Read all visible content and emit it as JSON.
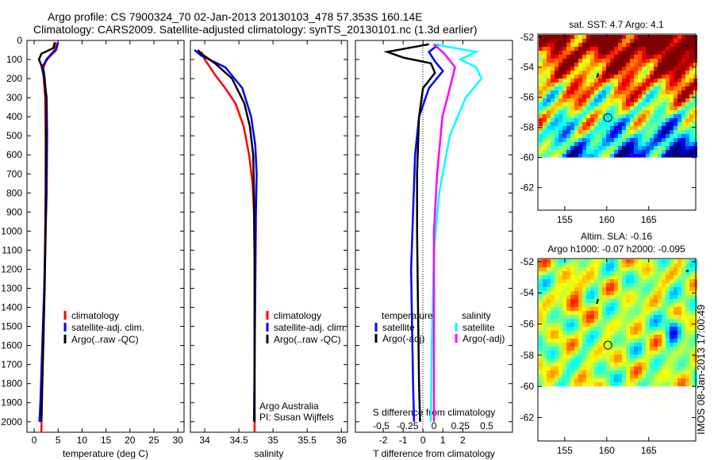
{
  "title": {
    "line1": "Argo profile: CS 7900324_70 02-Jan-2013 20130103_478 57.353S 160.14E",
    "line2": "Climatology: CARS2009. Satellite-adjusted climatology: synTS_20130101.nc (1.3d earlier)"
  },
  "side_stamp": "IMOS 08-Jan-2013 17:00:49",
  "colors": {
    "climatology": "#ff0000",
    "satellite": "#0000ff",
    "argo": "#000000",
    "sal_satellite": "#00ffff",
    "sal_argo": "#ff00ff"
  },
  "chart_data": [
    {
      "type": "line",
      "name": "temperature",
      "xlabel": "temperature (deg C)",
      "ylim": [
        2055,
        0
      ],
      "xlim": [
        -1.5,
        31.3
      ],
      "xticks": [
        0,
        5,
        10,
        15,
        20,
        25,
        30
      ],
      "yticks": [
        0,
        100,
        200,
        300,
        400,
        500,
        600,
        700,
        800,
        900,
        1000,
        1100,
        1200,
        1300,
        1400,
        1500,
        1600,
        1700,
        1800,
        1900,
        2000
      ],
      "legend": [
        "climatology",
        "satellite-adj. clim.",
        "Argo(..raw -QC)"
      ],
      "series": [
        {
          "name": "climatology",
          "color": "#ff0000",
          "points": [
            [
              4.5,
              10
            ],
            [
              4.3,
              50
            ],
            [
              2.5,
              100
            ],
            [
              1.9,
              150
            ],
            [
              2.0,
              200
            ],
            [
              2.3,
              300
            ],
            [
              2.4,
              500
            ],
            [
              2.4,
              800
            ],
            [
              2.3,
              1000
            ],
            [
              2.2,
              1200
            ],
            [
              2.0,
              1500
            ],
            [
              1.7,
              1800
            ],
            [
              1.5,
              2055
            ]
          ]
        },
        {
          "name": "satellite-adj. clim.",
          "color": "#0000ff",
          "points": [
            [
              5.0,
              10
            ],
            [
              4.6,
              50
            ],
            [
              3.0,
              90
            ],
            [
              1.6,
              140
            ],
            [
              2.1,
              200
            ],
            [
              2.6,
              300
            ],
            [
              2.7,
              500
            ],
            [
              2.6,
              800
            ],
            [
              2.4,
              1000
            ],
            [
              2.1,
              1300
            ],
            [
              1.7,
              1600
            ],
            [
              1.3,
              1900
            ],
            [
              1.1,
              2000
            ]
          ]
        },
        {
          "name": "Argo(..raw -QC)",
          "color": "#000000",
          "points": [
            [
              4.3,
              10
            ],
            [
              4.0,
              40
            ],
            [
              1.5,
              70
            ],
            [
              1.0,
              100
            ],
            [
              2.0,
              160
            ],
            [
              2.2,
              200
            ],
            [
              2.5,
              300
            ],
            [
              2.5,
              600
            ],
            [
              2.4,
              1000
            ],
            [
              2.2,
              1300
            ],
            [
              1.9,
              1600
            ],
            [
              1.6,
              1900
            ],
            [
              1.5,
              2000
            ]
          ]
        }
      ]
    },
    {
      "type": "line",
      "name": "salinity",
      "xlabel": "salinity",
      "ylim": [
        2055,
        0
      ],
      "xlim": [
        33.79,
        36.09
      ],
      "xticks": [
        34,
        34.5,
        35,
        35.5,
        36
      ],
      "tick_labels": [
        "34",
        "34.5",
        "35",
        "35.5",
        "36"
      ],
      "legend": [
        "climatology",
        "satellite-adj. clim.",
        "Argo(..raw -QC)"
      ],
      "annotation": [
        "Argo Australia",
        "PI: Susan Wijffels"
      ],
      "series": [
        {
          "name": "climatology",
          "color": "#ff0000",
          "points": [
            [
              33.95,
              60
            ],
            [
              34.0,
              100
            ],
            [
              34.15,
              180
            ],
            [
              34.3,
              250
            ],
            [
              34.45,
              330
            ],
            [
              34.57,
              450
            ],
            [
              34.65,
              600
            ],
            [
              34.7,
              750
            ],
            [
              34.72,
              900
            ],
            [
              34.73,
              1200
            ],
            [
              34.73,
              1600
            ],
            [
              34.73,
              2055
            ]
          ]
        },
        {
          "name": "satellite-adj. clim.",
          "color": "#0000ff",
          "points": [
            [
              33.85,
              50
            ],
            [
              33.95,
              80
            ],
            [
              34.3,
              140
            ],
            [
              34.55,
              250
            ],
            [
              34.68,
              400
            ],
            [
              34.74,
              550
            ],
            [
              34.76,
              700
            ],
            [
              34.75,
              900
            ],
            [
              34.74,
              1300
            ],
            [
              34.73,
              1700
            ],
            [
              34.72,
              2000
            ]
          ]
        },
        {
          "name": "Argo(..raw -QC)",
          "color": "#000000",
          "points": [
            [
              33.9,
              50
            ],
            [
              33.95,
              70
            ],
            [
              34.15,
              120
            ],
            [
              34.4,
              200
            ],
            [
              34.58,
              330
            ],
            [
              34.66,
              450
            ],
            [
              34.71,
              600
            ],
            [
              34.72,
              800
            ],
            [
              34.73,
              1100
            ],
            [
              34.73,
              1500
            ],
            [
              34.73,
              2000
            ]
          ]
        }
      ]
    },
    {
      "type": "line",
      "name": "difference",
      "xlabel": "T difference from climatology",
      "x2label": "S difference from climatology",
      "ylim": [
        2055,
        0
      ],
      "xlim": [
        -3.4,
        4.5
      ],
      "xticks": [
        -2,
        -1,
        0,
        1,
        2
      ],
      "x2ticks": [
        -0.5,
        -0.25,
        0,
        0.25,
        0.5
      ],
      "legend_t": {
        "title": "temperature",
        "items": [
          "satellite",
          "Argo(-adj)"
        ]
      },
      "legend_s": {
        "title": "salinity",
        "items": [
          "satellite",
          "Argo(-adj)"
        ]
      },
      "series": [
        {
          "name": "temperature satellite",
          "axis": "T",
          "color": "#0000ff",
          "points": [
            [
              0.8,
              20
            ],
            [
              0.3,
              60
            ],
            [
              0.6,
              110
            ],
            [
              1.0,
              160
            ],
            [
              0.3,
              250
            ],
            [
              -0.2,
              400
            ],
            [
              -0.4,
              600
            ],
            [
              -0.5,
              900
            ],
            [
              -0.6,
              1200
            ],
            [
              -0.55,
              1500
            ],
            [
              -0.5,
              1800
            ],
            [
              -0.45,
              2000
            ]
          ]
        },
        {
          "name": "temperature Argo(-adj)",
          "axis": "T",
          "color": "#000000",
          "points": [
            [
              0.3,
              20
            ],
            [
              -1.8,
              60
            ],
            [
              -1.0,
              90
            ],
            [
              0.4,
              120
            ],
            [
              0.6,
              170
            ],
            [
              0.0,
              250
            ],
            [
              -0.2,
              400
            ],
            [
              -0.3,
              700
            ],
            [
              -0.3,
              1000
            ],
            [
              -0.25,
              1400
            ],
            [
              -0.2,
              1800
            ],
            [
              -0.15,
              2000
            ]
          ]
        },
        {
          "name": "salinity satellite",
          "axis": "S",
          "color": "#00ffff",
          "points": [
            [
              0.0,
              20
            ],
            [
              0.4,
              60
            ],
            [
              0.25,
              100
            ],
            [
              0.4,
              140
            ],
            [
              0.45,
              200
            ],
            [
              0.3,
              300
            ],
            [
              0.15,
              500
            ],
            [
              0.05,
              800
            ],
            [
              0.0,
              1100
            ],
            [
              -0.02,
              1600
            ],
            [
              -0.03,
              2000
            ]
          ]
        },
        {
          "name": "salinity Argo(-adj)",
          "axis": "S",
          "color": "#ff00ff",
          "points": [
            [
              0.0,
              20
            ],
            [
              0.1,
              70
            ],
            [
              0.2,
              140
            ],
            [
              0.15,
              250
            ],
            [
              0.08,
              400
            ],
            [
              0.03,
              700
            ],
            [
              0.0,
              1000
            ],
            [
              0.0,
              1500
            ],
            [
              0.0,
              2000
            ]
          ]
        }
      ]
    },
    {
      "type": "heatmap",
      "name": "sst-map",
      "title": "sat. SST: 4.7  Argo: 4.1",
      "xticks": [
        155,
        160,
        165
      ],
      "yticks": [
        -52,
        -54,
        -56,
        -58,
        -60,
        -62
      ],
      "xlim": [
        151.8,
        170.6
      ],
      "ylim": [
        -63.5,
        -51.8
      ],
      "data_lat_min": -60,
      "profile_location": [
        160.14,
        -57.353
      ]
    },
    {
      "type": "heatmap",
      "name": "sla-map",
      "title": "Altim. SLA: -0.16",
      "subtitle": "Argo h1000: -0.07 h2000: -0.095",
      "xticks": [
        155,
        160,
        165
      ],
      "yticks": [
        -52,
        -54,
        -56,
        -58,
        -60,
        -62
      ],
      "xlim": [
        151.8,
        170.6
      ],
      "ylim": [
        -63.5,
        -51.8
      ],
      "data_lat_min": -60,
      "profile_location": [
        160.14,
        -57.353
      ]
    }
  ]
}
